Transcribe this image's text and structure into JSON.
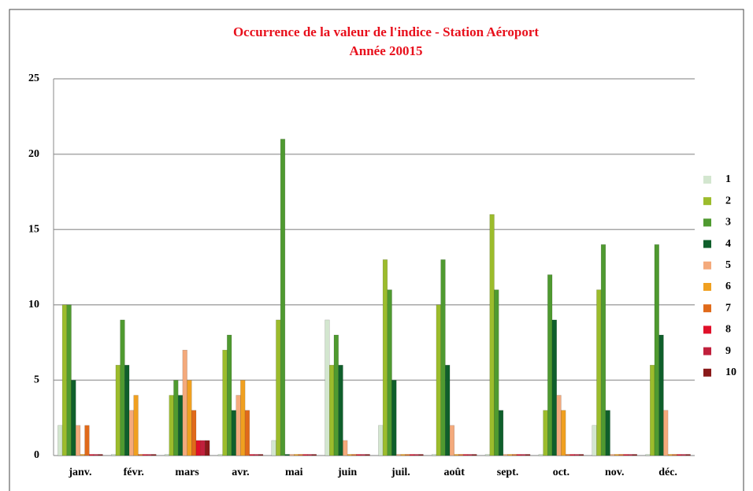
{
  "chart_data": {
    "type": "bar",
    "title": "Occurrence de la valeur de l'indice - Station Aéroport",
    "subtitle": "Année 20015",
    "categories": [
      "janv.",
      "févr.",
      "mars",
      "avr.",
      "mai",
      "juin",
      "juil.",
      "août",
      "sept.",
      "oct.",
      "nov.",
      "déc."
    ],
    "series": [
      {
        "name": "1",
        "color": "#d3e6cf",
        "values": [
          2,
          0,
          0,
          0,
          1,
          9,
          2,
          0,
          0,
          0,
          2,
          0
        ]
      },
      {
        "name": "2",
        "color": "#9cbc2c",
        "values": [
          10,
          6,
          4,
          7,
          9,
          6,
          13,
          10,
          16,
          3,
          11,
          6
        ]
      },
      {
        "name": "3",
        "color": "#4f9a30",
        "values": [
          10,
          9,
          5,
          8,
          21,
          8,
          11,
          13,
          11,
          12,
          14,
          14
        ]
      },
      {
        "name": "4",
        "color": "#0f5f2b",
        "values": [
          5,
          6,
          4,
          3,
          0,
          6,
          5,
          6,
          3,
          9,
          3,
          8
        ]
      },
      {
        "name": "5",
        "color": "#f4aa7c",
        "values": [
          2,
          3,
          7,
          4,
          0,
          1,
          0,
          2,
          0,
          4,
          0,
          3
        ]
      },
      {
        "name": "6",
        "color": "#f0a020",
        "values": [
          0,
          4,
          5,
          5,
          0,
          0,
          0,
          0,
          0,
          3,
          0,
          0
        ]
      },
      {
        "name": "7",
        "color": "#e06a1a",
        "values": [
          2,
          0,
          3,
          3,
          0,
          0,
          0,
          0,
          0,
          0,
          0,
          0
        ]
      },
      {
        "name": "8",
        "color": "#e0102a",
        "values": [
          0,
          0,
          1,
          0,
          0,
          0,
          0,
          0,
          0,
          0,
          0,
          0
        ]
      },
      {
        "name": "9",
        "color": "#c0203c",
        "values": [
          0,
          0,
          1,
          0,
          0,
          0,
          0,
          0,
          0,
          0,
          0,
          0
        ]
      },
      {
        "name": "10",
        "color": "#8a1a1a",
        "values": [
          0,
          0,
          1,
          0,
          0,
          0,
          0,
          0,
          0,
          0,
          0,
          0
        ]
      }
    ],
    "ylim": [
      0,
      25
    ],
    "yticks": [
      0,
      5,
      10,
      15,
      20,
      25
    ],
    "grid": true,
    "legend": "right"
  }
}
